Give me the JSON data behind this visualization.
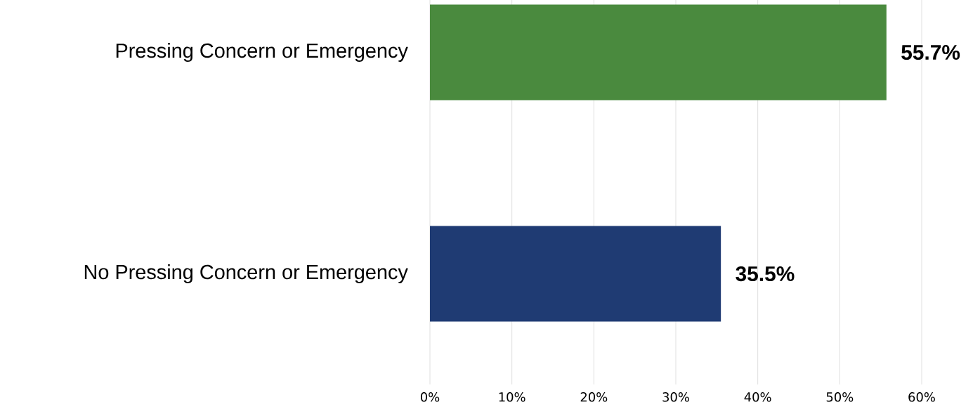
{
  "chart_data": {
    "type": "bar",
    "orientation": "horizontal",
    "categories": [
      "Pressing Concern or Emergency",
      "No Pressing Concern or Emergency"
    ],
    "values": [
      55.7,
      35.5
    ],
    "colors": [
      "#4a8a3e",
      "#1f3b73"
    ],
    "value_labels": [
      "55.7%",
      "35.5%"
    ],
    "xlim": [
      0,
      60
    ],
    "xticks": [
      {
        "value": 0,
        "label": "0%"
      },
      {
        "value": 10,
        "label": "10%"
      },
      {
        "value": 20,
        "label": "20%"
      },
      {
        "value": 30,
        "label": "30%"
      },
      {
        "value": 40,
        "label": "40%"
      },
      {
        "value": 50,
        "label": "50%"
      },
      {
        "value": 60,
        "label": "60%"
      }
    ],
    "grid": "x"
  }
}
